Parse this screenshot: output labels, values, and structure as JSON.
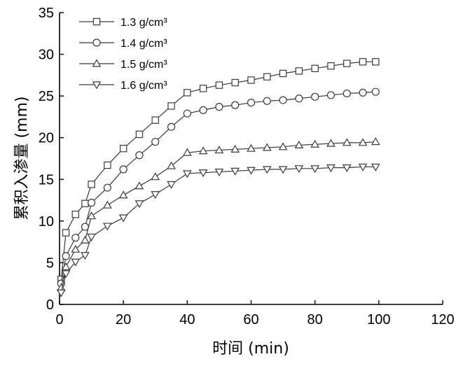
{
  "chart_data": {
    "type": "line",
    "xlabel": "时间 (min)",
    "ylabel": "累积入渗量 (mm)",
    "xlim": [
      0,
      120
    ],
    "ylim": [
      0,
      35
    ],
    "xticks": [
      0,
      20,
      40,
      60,
      80,
      100,
      120
    ],
    "yticks": [
      0,
      5,
      10,
      15,
      20,
      25,
      30,
      35
    ],
    "grid": false,
    "legend_position": "top-left",
    "series": [
      {
        "name": "1.3 g/cm³",
        "marker": "square",
        "x": [
          0.5,
          2,
          5,
          8,
          10,
          15,
          20,
          25,
          30,
          35,
          40,
          45,
          50,
          55,
          60,
          65,
          70,
          75,
          80,
          85,
          90,
          95,
          99
        ],
        "y": [
          3.0,
          8.6,
          10.8,
          12.1,
          14.4,
          16.7,
          18.7,
          20.4,
          22.1,
          23.8,
          25.4,
          25.9,
          26.3,
          26.6,
          26.9,
          27.3,
          27.7,
          28.0,
          28.3,
          28.6,
          28.9,
          29.1,
          29.1
        ]
      },
      {
        "name": "1.4 g/cm³",
        "marker": "circle",
        "x": [
          0.5,
          2,
          5,
          8,
          10,
          15,
          20,
          25,
          30,
          35,
          40,
          45,
          50,
          55,
          60,
          65,
          70,
          75,
          80,
          85,
          90,
          95,
          99
        ],
        "y": [
          2.5,
          5.8,
          8.0,
          9.3,
          12.2,
          14.0,
          16.2,
          17.9,
          19.5,
          21.3,
          22.9,
          23.3,
          23.7,
          23.9,
          24.2,
          24.4,
          24.5,
          24.7,
          24.9,
          25.1,
          25.3,
          25.4,
          25.5
        ]
      },
      {
        "name": "1.5 g/cm³",
        "marker": "triangle-up",
        "x": [
          0.5,
          2,
          5,
          8,
          10,
          15,
          20,
          25,
          30,
          35,
          40,
          45,
          50,
          55,
          60,
          65,
          70,
          75,
          80,
          85,
          90,
          95,
          99
        ],
        "y": [
          2.0,
          4.5,
          6.6,
          7.7,
          10.6,
          11.9,
          13.1,
          14.2,
          15.3,
          16.6,
          18.2,
          18.4,
          18.5,
          18.6,
          18.7,
          18.8,
          18.9,
          19.1,
          19.2,
          19.3,
          19.4,
          19.4,
          19.5
        ]
      },
      {
        "name": "1.6 g/cm³",
        "marker": "triangle-down",
        "x": [
          0.5,
          2,
          5,
          8,
          10,
          15,
          20,
          25,
          30,
          35,
          40,
          45,
          50,
          55,
          60,
          65,
          70,
          75,
          80,
          85,
          90,
          95,
          99
        ],
        "y": [
          1.4,
          3.7,
          5.1,
          5.9,
          8.1,
          9.4,
          10.4,
          12.1,
          13.2,
          14.4,
          15.7,
          15.8,
          15.9,
          16.0,
          16.1,
          16.2,
          16.2,
          16.3,
          16.3,
          16.4,
          16.4,
          16.5,
          16.5
        ]
      }
    ]
  }
}
